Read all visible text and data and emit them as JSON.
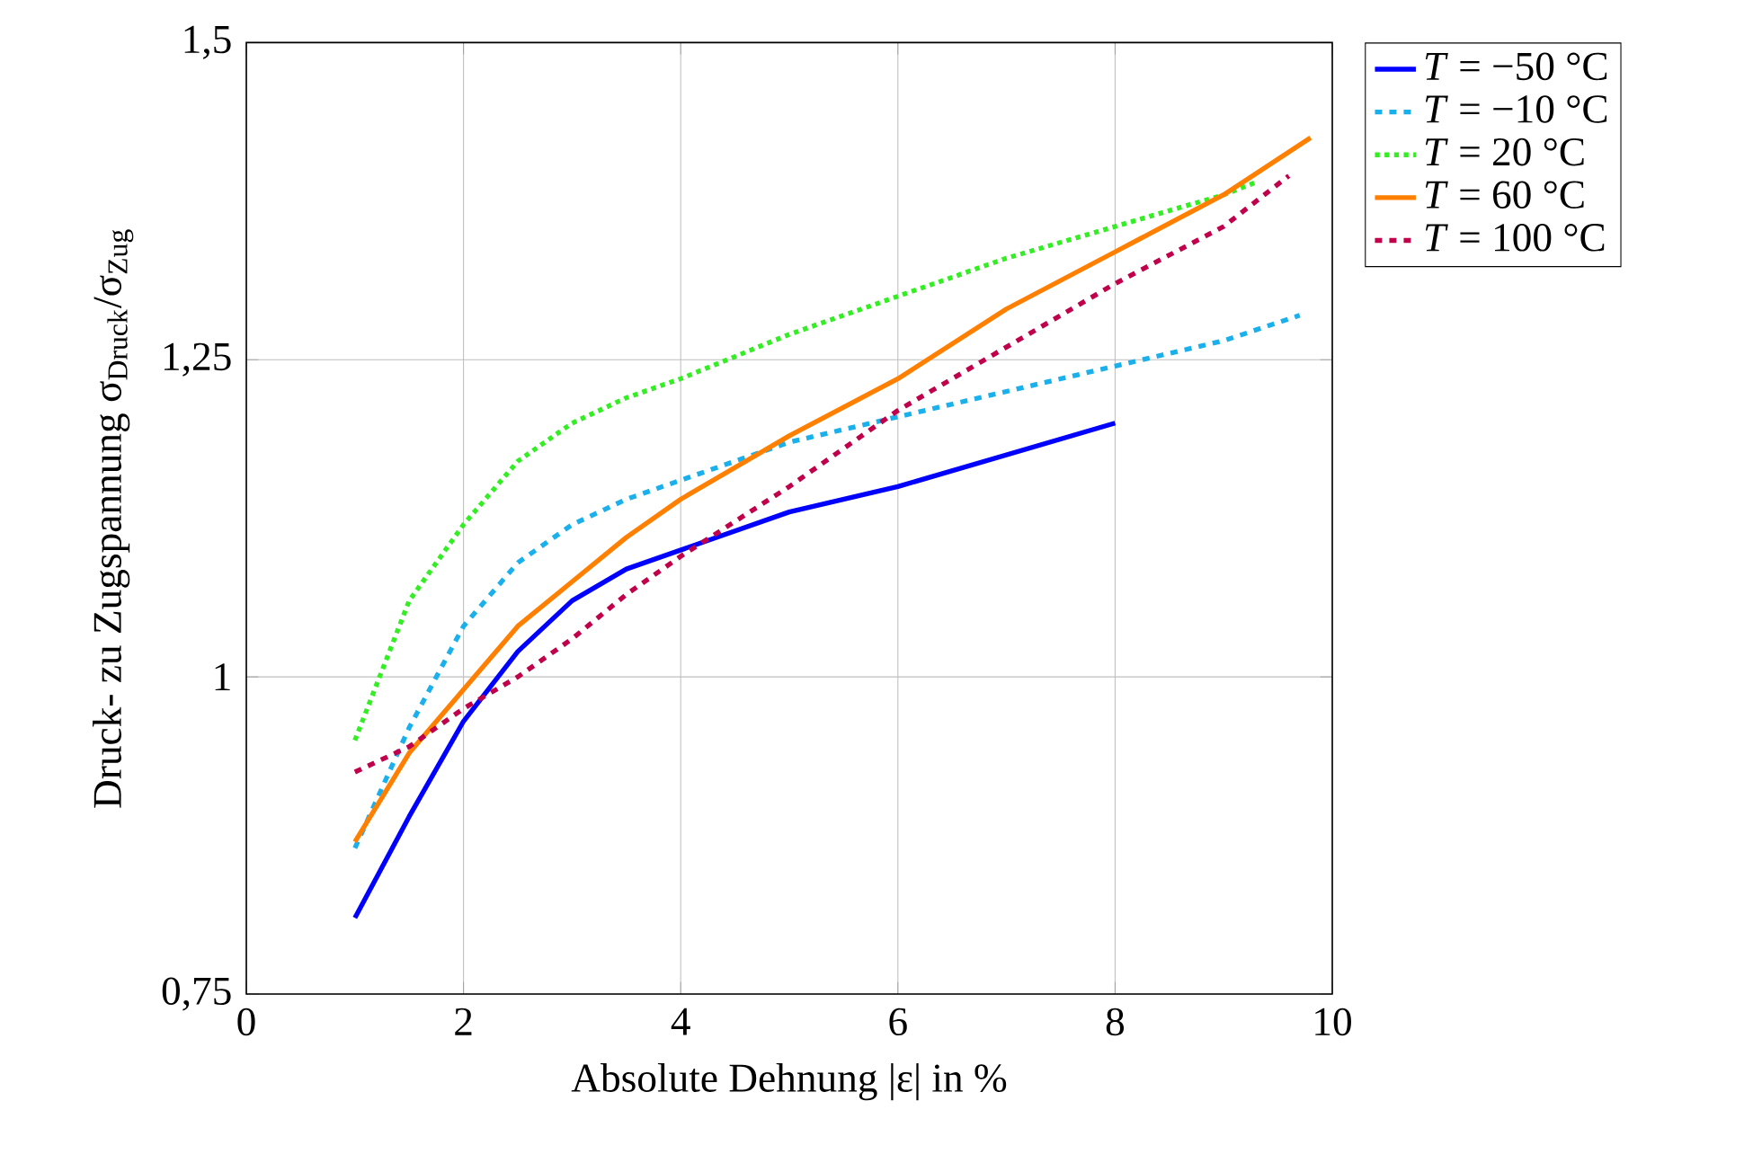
{
  "chart_data": {
    "type": "line",
    "xlabel": "Absolute Dehnung |ε| in %",
    "ylabel": "Druck- zu Zugspannung σ$_{Druck}$/σ$_{Zug}$",
    "xlim": [
      0,
      10
    ],
    "ylim": [
      0.75,
      1.5
    ],
    "xticks": [
      0,
      2,
      4,
      6,
      8,
      10
    ],
    "yticks": [
      {
        "value": 0.75,
        "label": "0,75"
      },
      {
        "value": 1,
        "label": "1"
      },
      {
        "value": 1.25,
        "label": "1,25"
      },
      {
        "value": 1.5,
        "label": "1,5"
      }
    ],
    "grid": true,
    "legend": "top right",
    "series": [
      {
        "name": "*T* = −50 °C",
        "color": "#0000ff",
        "line_style": "solid",
        "x": [
          1,
          1.5,
          2,
          2.5,
          3,
          3.5,
          4,
          5,
          6,
          7,
          8
        ],
        "values": [
          0.81,
          0.89,
          0.965,
          1.02,
          1.06,
          1.085,
          1.1,
          1.13,
          1.15,
          1.175,
          1.2
        ]
      },
      {
        "name": "*T* = −10 °C",
        "color": "#1ab0ec",
        "line_style": "dashed",
        "x": [
          1,
          1.5,
          2,
          2.5,
          3,
          3.5,
          4,
          5,
          6,
          7,
          8,
          9,
          9.7
        ],
        "values": [
          0.865,
          0.96,
          1.04,
          1.09,
          1.12,
          1.14,
          1.155,
          1.185,
          1.205,
          1.225,
          1.245,
          1.265,
          1.285
        ]
      },
      {
        "name": "*T* = 20 °C",
        "color": "#33ee22",
        "line_style": "dotted",
        "x": [
          1,
          1.5,
          2,
          2.5,
          3,
          3.5,
          4,
          5,
          6,
          7,
          8,
          9,
          9.3
        ],
        "values": [
          0.95,
          1.06,
          1.12,
          1.17,
          1.2,
          1.22,
          1.235,
          1.27,
          1.3,
          1.33,
          1.355,
          1.38,
          1.39
        ]
      },
      {
        "name": "*T* = 60 °C",
        "color": "#ff8000",
        "line_style": "solid",
        "x": [
          1,
          1.5,
          2,
          2.5,
          3,
          3.5,
          4,
          5,
          6,
          7,
          8,
          9,
          9.8
        ],
        "values": [
          0.87,
          0.94,
          0.99,
          1.04,
          1.075,
          1.11,
          1.14,
          1.19,
          1.235,
          1.29,
          1.335,
          1.38,
          1.425
        ]
      },
      {
        "name": "*T* = 100 °C",
        "color": "#c0004a",
        "line_style": "dashed",
        "x": [
          1,
          1.5,
          2,
          2.5,
          3,
          3.5,
          4,
          5,
          6,
          7,
          8,
          9,
          9.6
        ],
        "values": [
          0.925,
          0.945,
          0.975,
          1.0,
          1.03,
          1.065,
          1.095,
          1.15,
          1.21,
          1.26,
          1.31,
          1.355,
          1.395
        ]
      }
    ]
  }
}
